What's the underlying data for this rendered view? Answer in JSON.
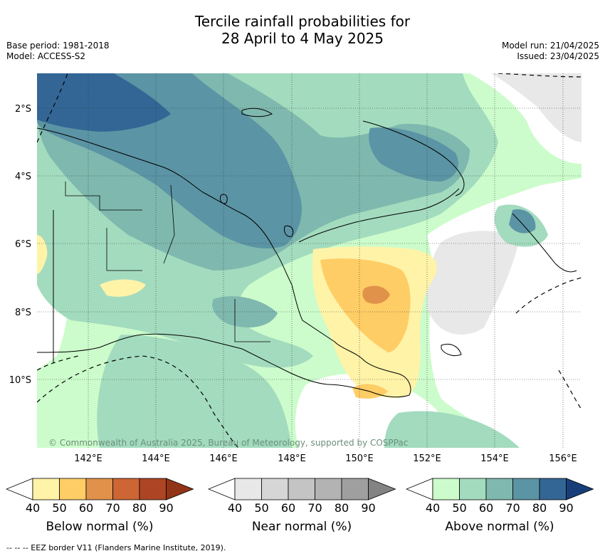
{
  "title_line1": "Tercile rainfall probabilities for",
  "title_line2": "28 April to 4 May 2025",
  "base_period": "Base period: 1981-2018",
  "model": "Model: ACCESS-S2",
  "model_run": "Model run: 21/04/2025",
  "issued": "Issued: 23/04/2025",
  "copyright": "© Commonwealth of Australia 2025, Bureau of Meteorology, supported by COSPPac",
  "footer": "--  --  -- EEZ border V11 (Flanders Marine Institute, 2019).",
  "lat_labels": [
    "2°S",
    "4°S",
    "6°S",
    "8°S",
    "10°S"
  ],
  "lon_labels": [
    "142°E",
    "144°E",
    "146°E",
    "148°E",
    "150°E",
    "152°E",
    "154°E",
    "156°E"
  ],
  "colorbars": [
    {
      "label": "Below normal (%)",
      "ticks": [
        "40",
        "50",
        "60",
        "70",
        "80",
        "90"
      ],
      "colors": [
        "#fff3a8",
        "#fecd65",
        "#e0924a",
        "#cd6535",
        "#ad4524",
        "#923417"
      ]
    },
    {
      "label": "Near normal (%)",
      "ticks": [
        "40",
        "50",
        "60",
        "70",
        "80",
        "90"
      ],
      "colors": [
        "#e8e8e8",
        "#d6d6d6",
        "#c4c4c4",
        "#b3b3b3",
        "#9f9f9f",
        "#838383"
      ]
    },
    {
      "label": "Above normal (%)",
      "ticks": [
        "40",
        "50",
        "60",
        "70",
        "80",
        "90"
      ],
      "colors": [
        "#ccfccb",
        "#a3dbbe",
        "#7fb8ae",
        "#5b94a4",
        "#336695",
        "#173e78"
      ]
    }
  ],
  "map_colors": {
    "above_40": "#ccfccb",
    "above_50": "#a3dbbe",
    "above_60": "#7fb8ae",
    "above_70": "#5b94a4",
    "above_80": "#336695",
    "below_40": "#fff3a8",
    "below_50": "#fecd65",
    "below_60": "#e0924a",
    "near_40": "#e8e8e8",
    "near_50": "#d6d6d6"
  }
}
